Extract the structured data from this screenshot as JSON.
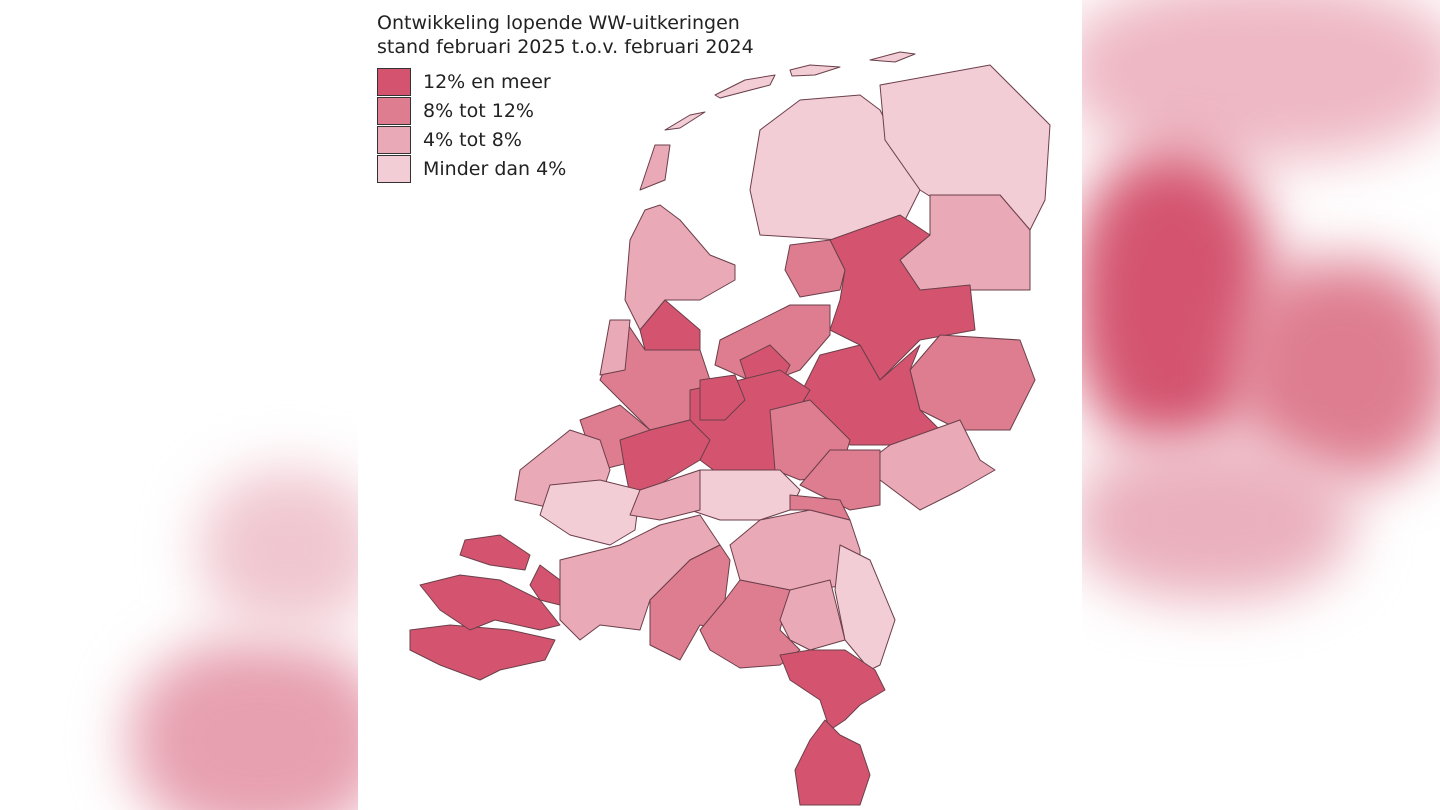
{
  "title": [
    "Ontwikkeling lopende WW-uitkeringen",
    "stand februari 2025 t.o.v. februari 2024"
  ],
  "legend": [
    {
      "label": "12% en meer",
      "color": "#d4546f"
    },
    {
      "label": "8% tot 12%",
      "color": "#de7d90"
    },
    {
      "label": "4% tot 8%",
      "color": "#e9a9b6"
    },
    {
      "label": "Minder dan 4%",
      "color": "#f3cdd5"
    }
  ]
}
